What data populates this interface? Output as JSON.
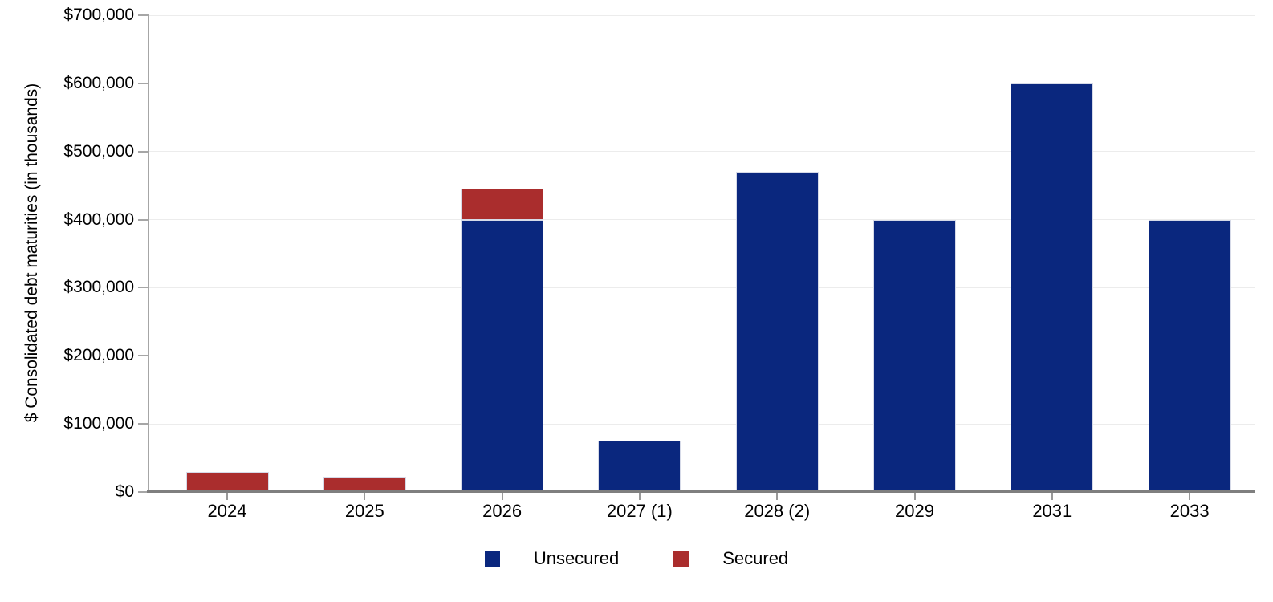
{
  "page": {
    "background_color": "#ffffff",
    "text_color": "#000000"
  },
  "chart_data": {
    "type": "bar",
    "stacked": true,
    "title": "",
    "xlabel": "",
    "ylabel": "$ Consolidated debt maturities (in thousands)",
    "categories": [
      "2024",
      "2025",
      "2026",
      "2027 (1)",
      "2028 (2)",
      "2029",
      "2031",
      "2033"
    ],
    "series": [
      {
        "name": "Unsecured",
        "color": "#0a277e",
        "values": [
          0,
          0,
          400000,
          75000,
          470000,
          400000,
          600000,
          400000
        ]
      },
      {
        "name": "Secured",
        "color": "#aa2d2d",
        "values": [
          30000,
          22000,
          46000,
          0,
          0,
          0,
          0,
          0
        ]
      }
    ],
    "ylim": [
      0,
      700000
    ],
    "yticks": [
      {
        "value": 0,
        "label": "$0"
      },
      {
        "value": 100000,
        "label": "$100,000"
      },
      {
        "value": 200000,
        "label": "$200,000"
      },
      {
        "value": 300000,
        "label": "$300,000"
      },
      {
        "value": 400000,
        "label": "$400,000"
      },
      {
        "value": 500000,
        "label": "$500,000"
      },
      {
        "value": 600000,
        "label": "$600,000"
      },
      {
        "value": 700000,
        "label": "$700,000"
      }
    ],
    "grid": "horizontal",
    "legend_position": "bottom",
    "axis_colors": {
      "x_axis_line": "#7f7f7f",
      "y_axis_line": "#a6a6a6",
      "gridline": "#ececec",
      "bar_border": "#d6dae8"
    }
  },
  "legend": {
    "items": [
      {
        "label": "Unsecured",
        "color": "#0a277e"
      },
      {
        "label": "Secured",
        "color": "#aa2d2d"
      }
    ]
  }
}
